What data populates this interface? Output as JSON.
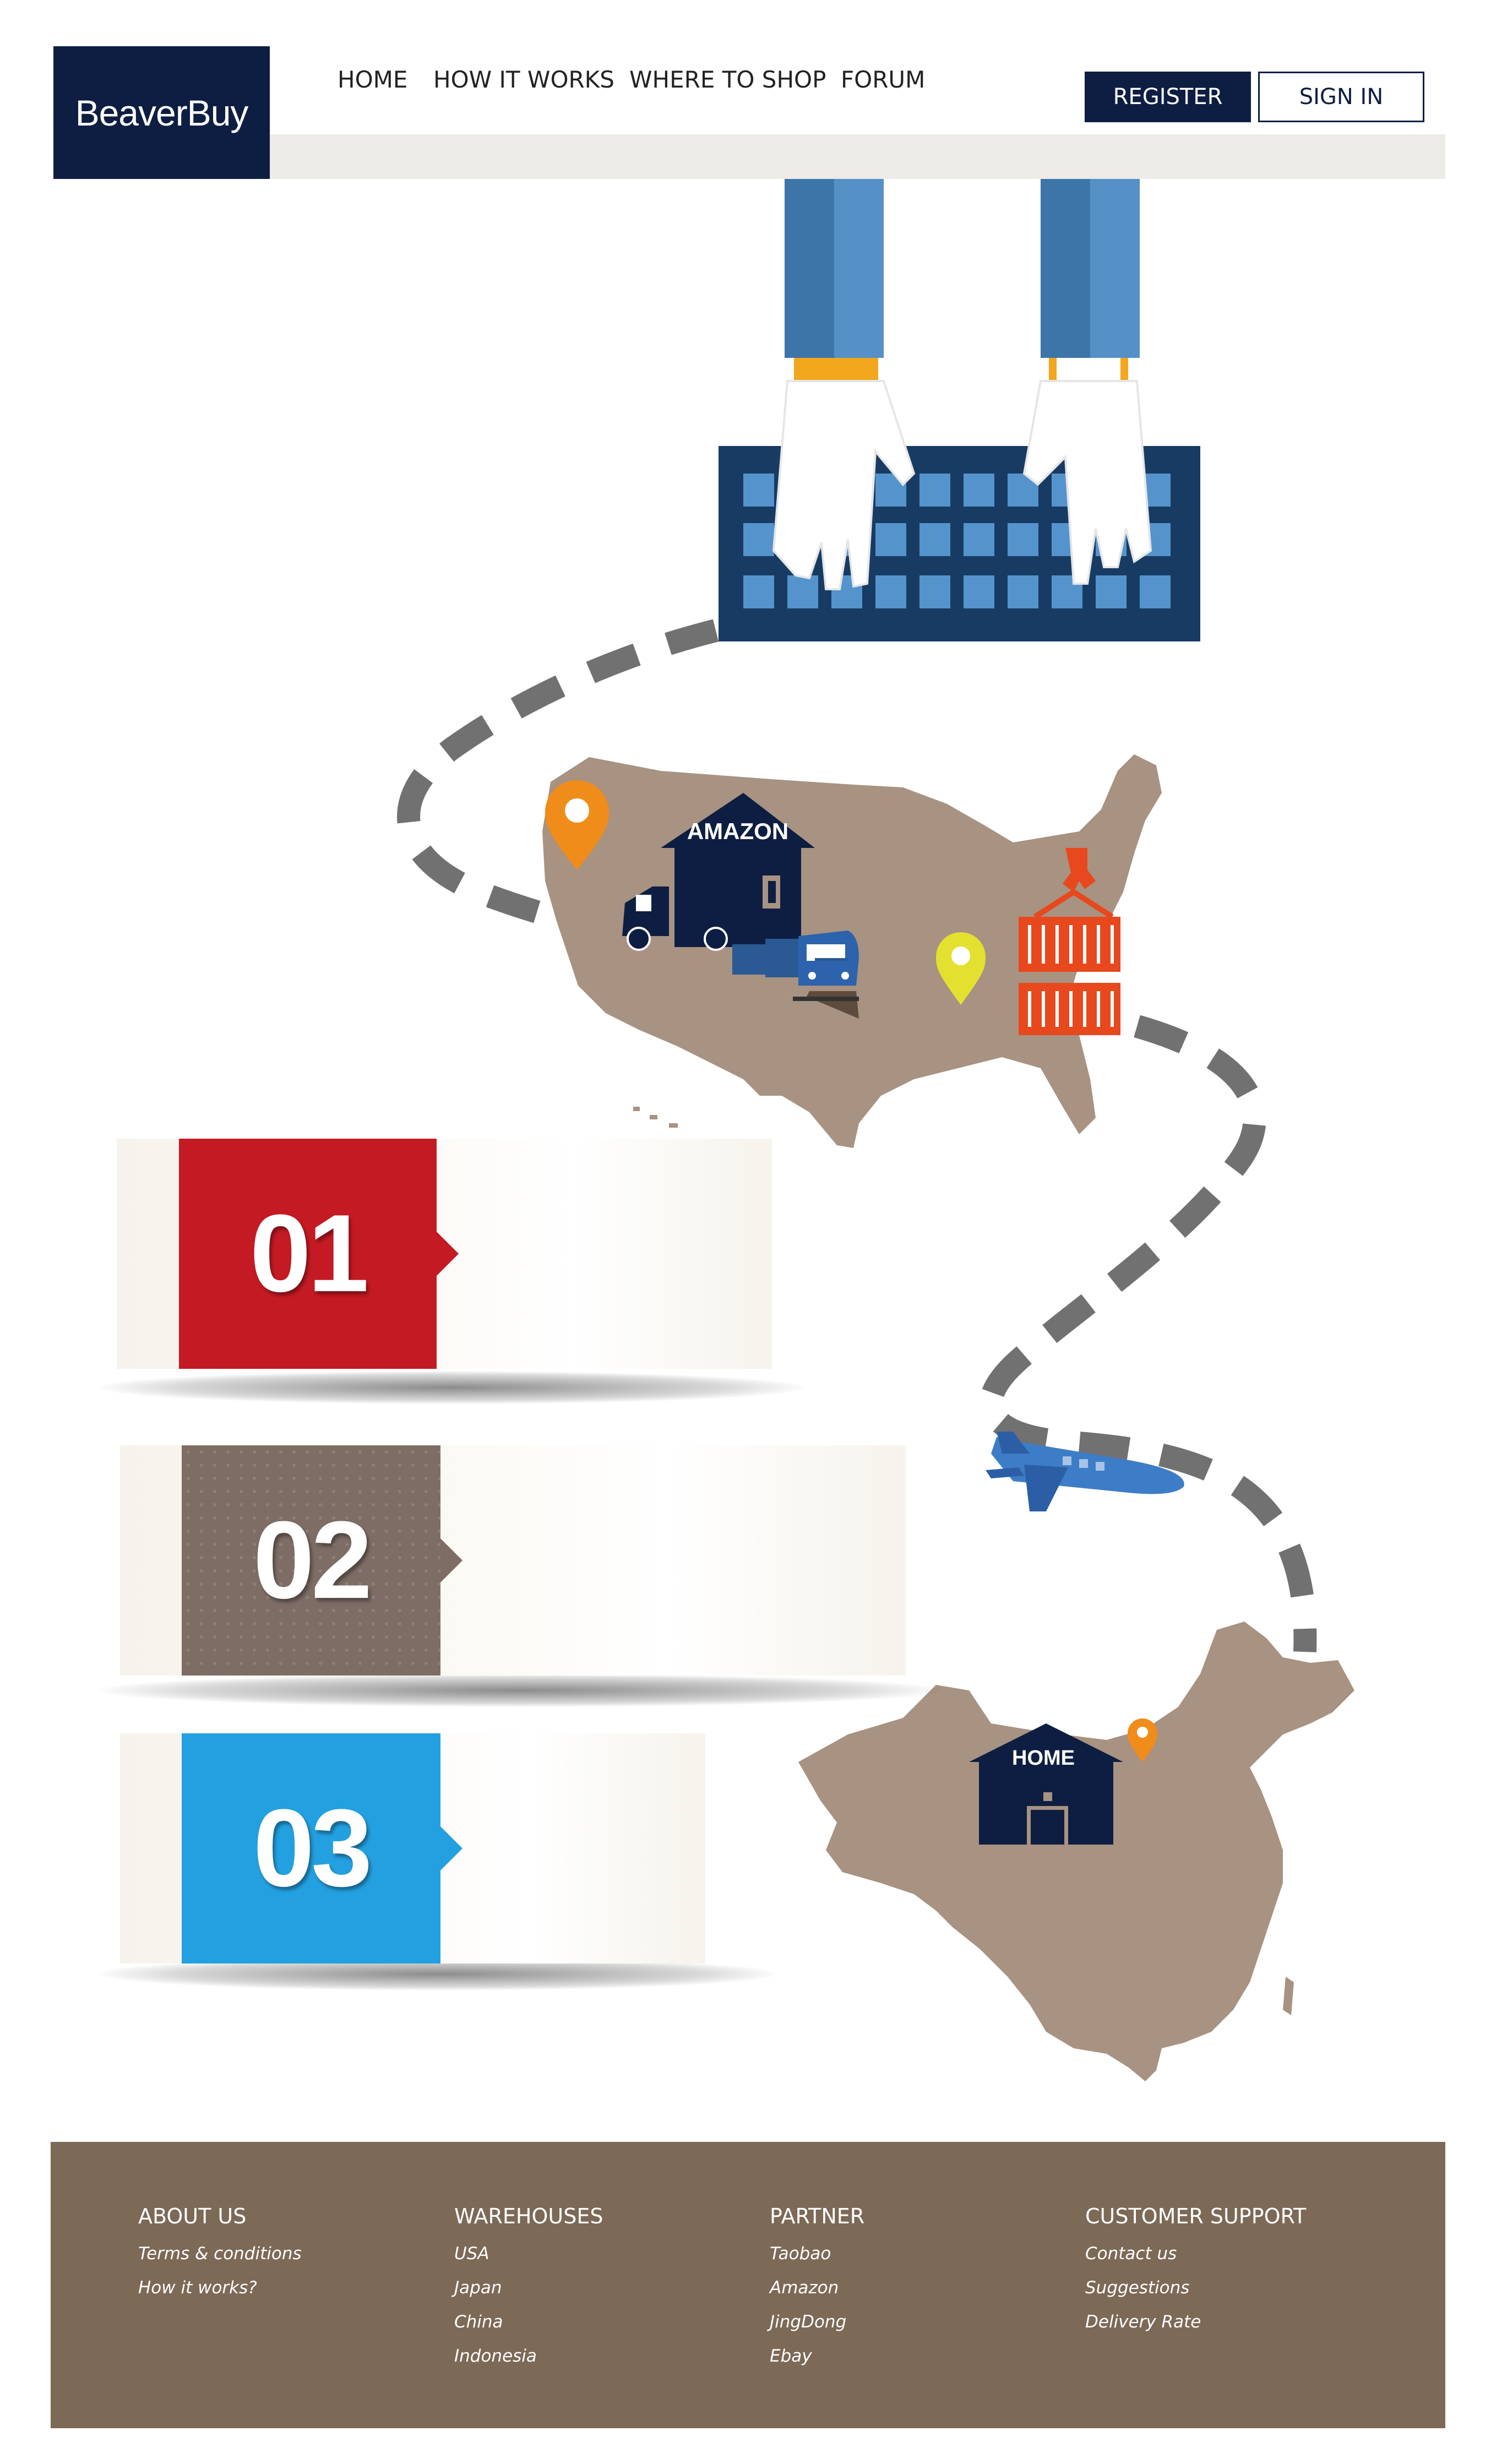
{
  "header": {
    "logo_text": "BeaverBuy",
    "nav": [
      "HOME",
      "HOW IT WORKS",
      "WHERE TO SHOP",
      "FORUM"
    ],
    "register_label": "REGISTER",
    "signin_label": "SIGN IN"
  },
  "illustration": {
    "warehouse_us_label": "AMAZON",
    "warehouse_home_label": "HOME"
  },
  "steps": [
    "01",
    "02",
    "03"
  ],
  "footer": {
    "columns": [
      {
        "heading": "ABOUT US",
        "links": [
          "Terms & conditions",
          "How it works?"
        ]
      },
      {
        "heading": "WAREHOUSES",
        "links": [
          "USA",
          "Japan",
          "China",
          "Indonesia"
        ]
      },
      {
        "heading": "PARTNER",
        "links": [
          "Taobao",
          "Amazon",
          "JingDong",
          "Ebay"
        ]
      },
      {
        "heading": "CUSTOMER SUPPORT",
        "links": [
          "Contact us",
          "Suggestions",
          "Delivery Rate"
        ]
      }
    ]
  },
  "colors": {
    "navy": "#0e1e42",
    "step1": "#c41a23",
    "step2": "#7d6d64",
    "step3": "#23a0e0",
    "map": "#a89281",
    "footer": "#7c6956"
  }
}
